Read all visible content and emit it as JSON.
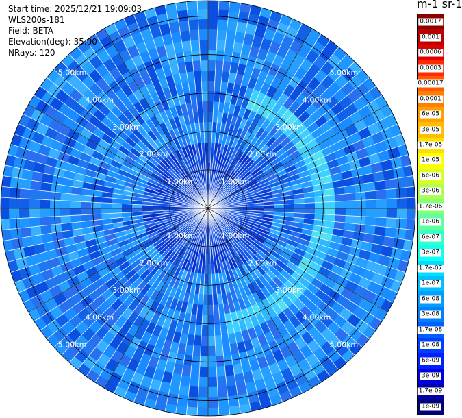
{
  "info": {
    "start_time": "Start time: 2025/12/21 19:09:03",
    "instrument": "WLS200s-181",
    "field": "Field: BETA",
    "elevation": "Elevation(deg): 35.00",
    "nrays": "NRays: 120"
  },
  "colorbar": {
    "unit_label": "m-1 sr-1",
    "labels": [
      "0.0017",
      "0.001",
      "0.0006",
      "0.0003",
      "0.00017",
      "0.0001",
      "6e-05",
      "3e-05",
      "1.7e-05",
      "1e-05",
      "6e-06",
      "3e-06",
      "1.7e-06",
      "1e-06",
      "6e-07",
      "3e-07",
      "1.7e-07",
      "1e-07",
      "6e-08",
      "3e-08",
      "1.7e-08",
      "1e-08",
      "6e-09",
      "3e-09",
      "1.7e-09",
      "1e-09"
    ],
    "colors": [
      "#8c0000",
      "#bb0000",
      "#e10000",
      "#ff2a00",
      "#ff5a00",
      "#ff7f00",
      "#ff9f00",
      "#ffbf00",
      "#ffdf00",
      "#ffff00",
      "#d8ff28",
      "#b0ff50",
      "#88ff78",
      "#60ffa0",
      "#38ffc8",
      "#10fff0",
      "#00dfff",
      "#00bfff",
      "#009fff",
      "#007fff",
      "#005fff",
      "#003fff",
      "#0020ff",
      "#0000dd",
      "#0000aa",
      "#000077"
    ]
  },
  "chart_data": {
    "type": "heatmap",
    "projection": "polar PPI (plan position indicator)",
    "field": "BETA",
    "nrays": 120,
    "max_range_km": 5.4,
    "range_rings_km": [
      1,
      2,
      3,
      4,
      5
    ],
    "ring_labels": [
      "1.00km",
      "2.00km",
      "3.00km",
      "4.00km",
      "5.00km"
    ],
    "typical_value_range": [
      "3e-08",
      "1.7e-07"
    ],
    "enhanced_arc": {
      "value": "3e-07",
      "radius_km": [
        2.6,
        3.1
      ],
      "azimuth_deg": [
        20,
        170
      ]
    },
    "scale": "log",
    "grid": true
  }
}
